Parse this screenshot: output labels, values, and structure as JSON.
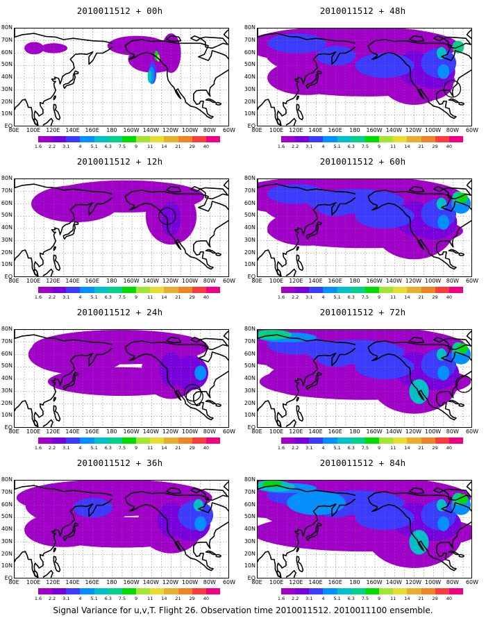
{
  "footer": "Signal Variance for u,v,T. Flight 26. Observation time 2010011512. 2010011100 ensemble.",
  "lat_labels": [
    "80N",
    "70N",
    "60N",
    "50N",
    "40N",
    "30N",
    "20N",
    "10N",
    "EQ"
  ],
  "lon_labels": [
    "80E",
    "100E",
    "120E",
    "140E",
    "160E",
    "180",
    "160W",
    "140W",
    "120W",
    "100W",
    "80W",
    "60W"
  ],
  "colorbar": {
    "labels": [
      "1.6",
      "2.2",
      "3.1",
      "4",
      "5.1",
      "6.3",
      "7.5",
      "9",
      "11",
      "14",
      "21",
      "29",
      "40"
    ],
    "colors": [
      "#a000c8",
      "#7800dc",
      "#3c3cff",
      "#0090ff",
      "#00c0c8",
      "#00d28c",
      "#00dc00",
      "#a0e632",
      "#e6dc32",
      "#e6af2d",
      "#f08228",
      "#fa3c3c",
      "#f00082"
    ]
  },
  "panels": [
    {
      "title": "2010011512 + 00h",
      "level": 0,
      "circles": []
    },
    {
      "title": "2010011512 + 12h",
      "level": 1,
      "circles": [
        {
          "lon": -124,
          "lat": 50
        }
      ]
    },
    {
      "title": "2010011512 + 24h",
      "level": 2,
      "circles": [
        {
          "lon": -98,
          "lat": 29
        },
        {
          "lon": -96,
          "lat": 26
        }
      ]
    },
    {
      "title": "2010011512 + 36h",
      "level": 3,
      "circles": []
    },
    {
      "title": "2010011512 + 48h",
      "level": 4,
      "circles": [
        {
          "lon": -81,
          "lat": 31
        }
      ]
    },
    {
      "title": "2010011512 + 60h",
      "level": 5,
      "circles": []
    },
    {
      "title": "2010011512 + 72h",
      "level": 6,
      "circles": [
        {
          "lon": -69,
          "lat": 36
        }
      ]
    },
    {
      "title": "2010011512 + 84h",
      "level": 7,
      "circles": []
    }
  ]
}
